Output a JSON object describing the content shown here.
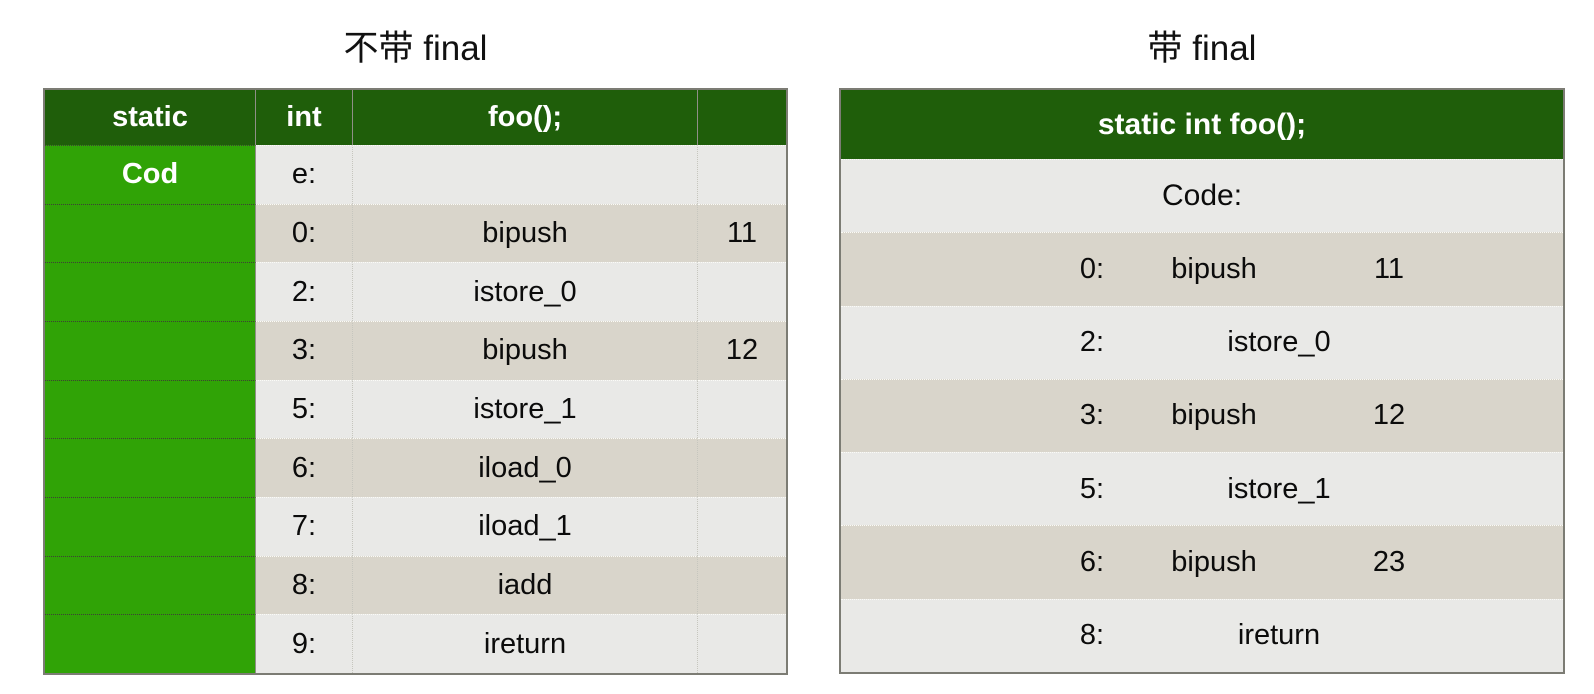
{
  "colors": {
    "header_green": "#1f5e0a",
    "bright_green": "#30a306",
    "row_light": "#e9e9e7",
    "row_dark": "#d9d5cb"
  },
  "left_table": {
    "title": "不带 final",
    "header": {
      "c1": "static",
      "c2": "int",
      "c3": "foo();",
      "c4": ""
    },
    "rows": [
      {
        "col1": "Cod",
        "addr": "e:",
        "instr": "",
        "op": ""
      },
      {
        "col1": "",
        "addr": "0:",
        "instr": "bipush",
        "op": "11"
      },
      {
        "col1": "",
        "addr": "2:",
        "instr": "istore_0",
        "op": ""
      },
      {
        "col1": "",
        "addr": "3:",
        "instr": "bipush",
        "op": "12"
      },
      {
        "col1": "",
        "addr": "5:",
        "instr": "istore_1",
        "op": ""
      },
      {
        "col1": "",
        "addr": "6:",
        "instr": "iload_0",
        "op": ""
      },
      {
        "col1": "",
        "addr": "7:",
        "instr": "iload_1",
        "op": ""
      },
      {
        "col1": "",
        "addr": "8:",
        "instr": "iadd",
        "op": ""
      },
      {
        "col1": "",
        "addr": "9:",
        "instr": "ireturn",
        "op": ""
      }
    ]
  },
  "right_table": {
    "title": "带 final",
    "header": "static int foo();",
    "code_label": "Code:",
    "rows": [
      {
        "addr": "0:",
        "instr": "bipush",
        "op": "11"
      },
      {
        "addr": "2:",
        "instr": "istore_0",
        "op": ""
      },
      {
        "addr": "3:",
        "instr": "bipush",
        "op": "12"
      },
      {
        "addr": "5:",
        "instr": "istore_1",
        "op": ""
      },
      {
        "addr": "6:",
        "instr": "bipush",
        "op": "23"
      },
      {
        "addr": "8:",
        "instr": "ireturn",
        "op": ""
      }
    ]
  }
}
